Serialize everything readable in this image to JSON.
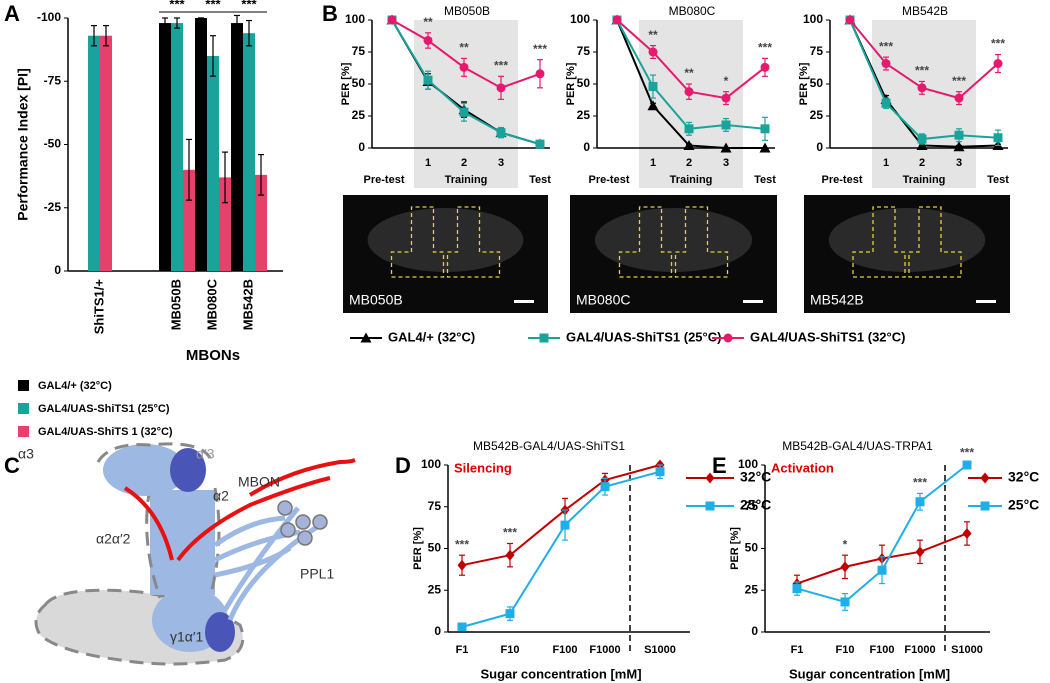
{
  "chart_data": [
    {
      "type": "bar",
      "panel": "A",
      "ylabel": "Performance Index [PI]",
      "xlabel": "MBONs",
      "categories": [
        "ShiTS1/+",
        "MB050B",
        "MB080C",
        "MB542B"
      ],
      "series": [
        {
          "name": "GAL4/+ (32°C)",
          "color": "#000000",
          "values": [
            null,
            -98,
            -100,
            -98
          ],
          "errors": [
            null,
            2,
            0,
            3
          ]
        },
        {
          "name": "GAL4/UAS-ShiTS1 (25°C)",
          "color": "#1aa39a",
          "values": [
            -93,
            -98,
            -85,
            -94
          ],
          "errors": [
            4,
            2,
            8,
            5
          ]
        },
        {
          "name": "GAL4/UAS-ShiTS 1 (32°C)",
          "color": "#e6416b",
          "values": [
            -93,
            -40,
            -37,
            -38
          ],
          "errors": [
            4,
            12,
            10,
            8
          ]
        }
      ],
      "significance": [
        null,
        "***",
        "***",
        "***"
      ],
      "ylim": [
        0,
        -100
      ],
      "yticks": [
        -100,
        -75,
        -50,
        -25,
        0
      ],
      "grid": false,
      "legend": "bottom-left"
    },
    {
      "type": "line",
      "panel": "B",
      "title": "MB050B",
      "ylabel": "PER [%]",
      "group_label": "Training",
      "categories": [
        "Pre-test",
        "1",
        "2",
        "3",
        "Test"
      ],
      "series": [
        {
          "name": "GAL4/+ (32°C)",
          "color": "#000000",
          "marker": "triangle",
          "values": [
            100,
            52,
            30,
            12,
            3
          ],
          "errors": [
            0,
            6,
            6,
            3,
            2
          ]
        },
        {
          "name": "GAL4/UAS-ShiTS1 (25°C)",
          "color": "#1aa39a",
          "marker": "square",
          "values": [
            100,
            53,
            28,
            12,
            3
          ],
          "errors": [
            0,
            7,
            7,
            4,
            2
          ]
        },
        {
          "name": "GAL4/UAS-ShiTS1 (32°C)",
          "color": "#e6196e",
          "marker": "circle",
          "values": [
            100,
            84,
            63,
            47,
            58
          ],
          "errors": [
            0,
            6,
            7,
            9,
            11
          ]
        }
      ],
      "significance": [
        null,
        "**",
        "**",
        "***",
        "***"
      ],
      "ylim": [
        0,
        100
      ],
      "yticks": [
        0,
        25,
        50,
        75,
        100
      ],
      "grid": false,
      "legend": "bottom"
    },
    {
      "type": "line",
      "title": "MB080C",
      "ylabel": "PER [%]",
      "group_label": "Training",
      "categories": [
        "Pre-test",
        "1",
        "2",
        "3",
        "Test"
      ],
      "series": [
        {
          "name": "GAL4/+ (32°C)",
          "color": "#000000",
          "marker": "triangle",
          "values": [
            100,
            33,
            2,
            0,
            0
          ],
          "errors": [
            0,
            2,
            1,
            0,
            0
          ]
        },
        {
          "name": "GAL4/UAS-ShiTS1 (25°C)",
          "color": "#1aa39a",
          "marker": "square",
          "values": [
            100,
            48,
            15,
            18,
            15
          ],
          "errors": [
            0,
            9,
            5,
            5,
            9
          ]
        },
        {
          "name": "GAL4/UAS-ShiTS1 (32°C)",
          "color": "#e6196e",
          "marker": "circle",
          "values": [
            100,
            75,
            44,
            39,
            63
          ],
          "errors": [
            0,
            5,
            6,
            5,
            7
          ]
        }
      ],
      "significance": [
        null,
        "**",
        "**",
        "*",
        "***"
      ],
      "ylim": [
        0,
        100
      ],
      "yticks": [
        0,
        25,
        50,
        75,
        100
      ],
      "grid": false
    },
    {
      "type": "line",
      "title": "MB542B",
      "ylabel": "PER [%]",
      "group_label": "Training",
      "categories": [
        "Pre-test",
        "1",
        "2",
        "3",
        "Test"
      ],
      "series": [
        {
          "name": "GAL4/+ (32°C)",
          "color": "#000000",
          "marker": "triangle",
          "values": [
            100,
            38,
            2,
            1,
            2
          ],
          "errors": [
            0,
            3,
            1,
            1,
            1
          ]
        },
        {
          "name": "GAL4/UAS-ShiTS1 (25°C)",
          "color": "#1aa39a",
          "marker": "square",
          "values": [
            100,
            35,
            7,
            10,
            8
          ],
          "errors": [
            0,
            4,
            4,
            5,
            6
          ]
        },
        {
          "name": "GAL4/UAS-ShiTS1 (32°C)",
          "color": "#e6196e",
          "marker": "circle",
          "values": [
            100,
            66,
            47,
            39,
            66
          ],
          "errors": [
            0,
            5,
            5,
            5,
            7
          ]
        }
      ],
      "significance": [
        null,
        "***",
        "***",
        "***",
        "***"
      ],
      "ylim": [
        0,
        100
      ],
      "yticks": [
        0,
        25,
        50,
        75,
        100
      ],
      "grid": false
    },
    {
      "type": "line",
      "panel": "D",
      "title": "MB542B-GAL4/UAS-ShiTS1",
      "annotation": "Silencing",
      "ylabel": "PER [%]",
      "xlabel": "Sugar concentration [mM]",
      "categories": [
        "F1",
        "F10",
        "F100",
        "F1000",
        "S1000"
      ],
      "series": [
        {
          "name": "32°C",
          "color": "#c00000",
          "marker": "diamond",
          "values": [
            40,
            46,
            73,
            91,
            100
          ],
          "errors": [
            6,
            7,
            7,
            4,
            1
          ]
        },
        {
          "name": "25°C",
          "color": "#1eaee8",
          "marker": "square",
          "values": [
            3,
            11,
            64,
            87,
            96
          ],
          "errors": [
            2,
            4,
            9,
            5,
            4
          ]
        }
      ],
      "significance": [
        "***",
        "***",
        null,
        null,
        null
      ],
      "ylim": [
        0,
        100
      ],
      "yticks": [
        0,
        25,
        50,
        75,
        100
      ],
      "grid": false,
      "divider": true,
      "legend": "right"
    },
    {
      "type": "line",
      "panel": "E",
      "title": "MB542B-GAL4/UAS-TRPA1",
      "annotation": "Activation",
      "ylabel": "PER [%]",
      "xlabel": "Sugar concentration [mM]",
      "categories": [
        "F1",
        "F10",
        "F100",
        "F1000",
        "S1000"
      ],
      "series": [
        {
          "name": "32°C",
          "color": "#c00000",
          "marker": "diamond",
          "values": [
            29,
            39,
            44,
            48,
            59
          ],
          "errors": [
            5,
            7,
            8,
            7,
            7
          ]
        },
        {
          "name": "25°C",
          "color": "#1eaee8",
          "marker": "square",
          "values": [
            26,
            18,
            37,
            78,
            100
          ],
          "errors": [
            4,
            5,
            8,
            5,
            1
          ]
        }
      ],
      "significance": [
        null,
        "*",
        null,
        "***",
        "***"
      ],
      "ylim": [
        0,
        100
      ],
      "yticks": [
        0,
        25,
        50,
        75,
        100
      ],
      "grid": false,
      "divider": true,
      "legend": "right"
    }
  ],
  "diagram": {
    "panel": "C",
    "labels": [
      "α3",
      "α′3",
      "MBON",
      "α2",
      "α2α′2",
      "PPL1",
      "γ1α′1"
    ]
  }
}
